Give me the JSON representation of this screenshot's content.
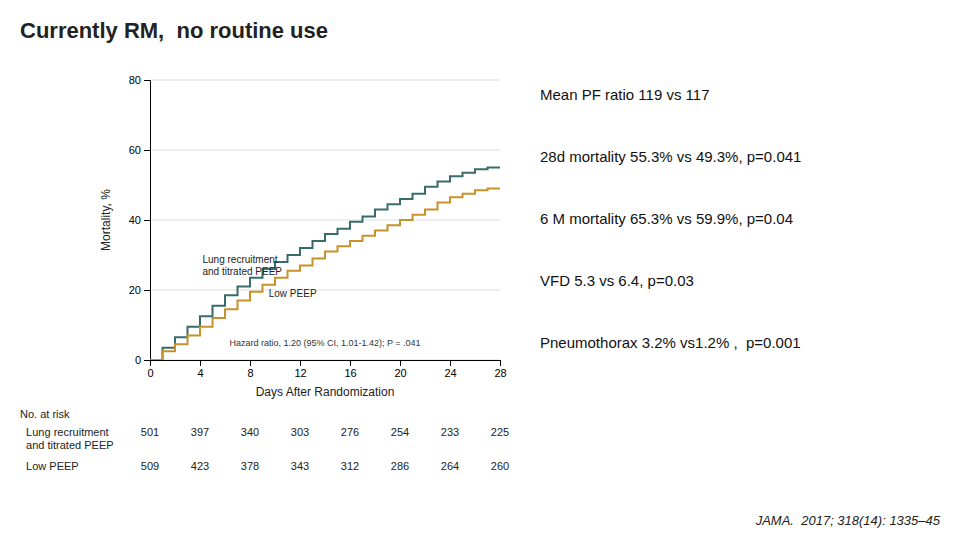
{
  "chart_data": {
    "type": "step",
    "title": "Currently RM,  no routine use",
    "xlabel": "Days After Randomization",
    "ylabel": "Mortality, %",
    "x": [
      0,
      1,
      2,
      3,
      4,
      5,
      6,
      7,
      8,
      9,
      10,
      11,
      12,
      13,
      14,
      15,
      16,
      17,
      18,
      19,
      20,
      21,
      22,
      23,
      24,
      25,
      26,
      27,
      28
    ],
    "series": [
      {
        "name": "Lung recruitment\nand titrated PEEP",
        "color": "#3A6B6B",
        "values": [
          0,
          3.5,
          6.5,
          9.5,
          12.5,
          15.5,
          18.5,
          21.0,
          23.5,
          26.0,
          28.0,
          30.0,
          32.0,
          34.0,
          36.0,
          37.5,
          39.5,
          41.0,
          43.0,
          44.5,
          46.0,
          47.5,
          49.5,
          51.0,
          52.5,
          53.5,
          54.5,
          55.0,
          55.3
        ]
      },
      {
        "name": "Low PEEP",
        "color": "#C8922A",
        "values": [
          0,
          2.5,
          4.5,
          7.0,
          9.5,
          12.0,
          14.5,
          17.0,
          19.5,
          21.5,
          23.5,
          25.5,
          27.0,
          29.0,
          31.0,
          32.5,
          34.0,
          35.5,
          37.0,
          38.5,
          40.0,
          41.5,
          43.0,
          45.0,
          46.5,
          47.5,
          48.5,
          49.0,
          49.3
        ]
      }
    ],
    "xlim": [
      0,
      28
    ],
    "ylim": [
      0,
      80
    ],
    "xticks": [
      0,
      4,
      8,
      12,
      16,
      20,
      24,
      28
    ],
    "yticks": [
      0,
      20,
      40,
      60,
      80
    ],
    "grid": true,
    "hazard_text": "Hazard ratio, 1.20 (95% CI, 1.01-1.42); P = .041",
    "risk_table": {
      "label": "No. at risk",
      "rows": [
        {
          "name": "  Lung recruitment\n  and titrated PEEP",
          "values": [
            501,
            397,
            340,
            303,
            276,
            254,
            233,
            225
          ]
        },
        {
          "name": "  Low PEEP",
          "values": [
            509,
            423,
            378,
            343,
            312,
            286,
            264,
            260
          ]
        }
      ]
    },
    "stats_lines": [
      "Mean PF ratio 119 vs 117",
      "28d mortality 55.3% vs 49.3%, p=0.041",
      "6 M mortality 65.3% vs 59.9%, p=0.04",
      "VFD 5.3 vs 6.4, p=0.03",
      "Pneumothorax 3.2% vs1.2% ,  p=0.001"
    ],
    "source": "JAMA.  2017; 318(14): 1335–45"
  }
}
